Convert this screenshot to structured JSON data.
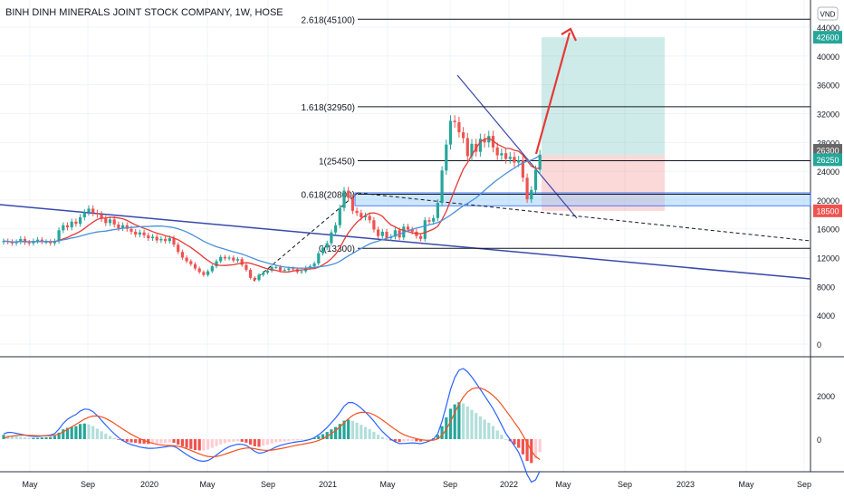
{
  "chart_data": {
    "type": "candlestick",
    "title": "BINH DINH MINERALS JOINT STOCK COMPANY, 1W, HOSE",
    "currency_label": "VND",
    "x_ticks": [
      "May",
      "Sep",
      "2020",
      "May",
      "Sep",
      "2021",
      "May",
      "Sep",
      "2022",
      "May",
      "Sep",
      "2023",
      "May",
      "Sep"
    ],
    "y_ticks": [
      0,
      4000,
      8000,
      12000,
      16000,
      20000,
      24000,
      28000,
      32000,
      36000,
      40000,
      44000
    ],
    "y_range": [
      0,
      46000
    ],
    "price_badges": [
      {
        "value": "42600",
        "color": "#26a69a"
      },
      {
        "value": "26300",
        "color": "#666666"
      },
      {
        "value": "26250",
        "color": "#26a69a"
      },
      {
        "value": "18500",
        "color": "#ef5350"
      }
    ],
    "fib_levels": [
      {
        "label": "2.618(45100)",
        "value": 45100
      },
      {
        "label": "1.618(32950)",
        "value": 32950
      },
      {
        "label": "1(25450)",
        "value": 25450
      },
      {
        "label": "0.618(20800)",
        "value": 20800
      },
      {
        "label": "0(13300)",
        "value": 13300
      }
    ],
    "position_box": {
      "entry": 26250,
      "target": 42600,
      "stop": 18500
    },
    "macd_ticks": [
      2000,
      0
    ],
    "macd_range": [
      -1400,
      3700
    ],
    "close_series": [
      14300,
      14200,
      14000,
      14200,
      14600,
      14100,
      14000,
      14300,
      14500,
      14200,
      14200,
      14000,
      14300,
      15800,
      16500,
      16200,
      17000,
      16700,
      17600,
      18300,
      18800,
      18200,
      18000,
      17400,
      16800,
      17300,
      16600,
      16100,
      16500,
      16000,
      15600,
      15200,
      15500,
      15100,
      14700,
      14900,
      14400,
      14600,
      14300,
      14700,
      13800,
      12800,
      12000,
      11500,
      11100,
      10500,
      10000,
      9600,
      10100,
      10800,
      11500,
      12100,
      11900,
      12000,
      11600,
      11800,
      11000,
      10300,
      9200,
      8900,
      9600,
      9900,
      10200,
      10700,
      10700,
      10200,
      10300,
      10500,
      10400,
      10000,
      10100,
      10600,
      10800,
      11200,
      12600,
      13400,
      14000,
      15500,
      16500,
      18900,
      21300,
      20300,
      18500,
      18200,
      17600,
      17800,
      17200,
      15900,
      15000,
      15600,
      14700,
      14900,
      15800,
      14800,
      16300,
      15900,
      15600,
      15000,
      14600,
      17200,
      17000,
      17500,
      19600,
      24100,
      27700,
      31000,
      30800,
      29400,
      28600,
      26100,
      27800,
      26700,
      28500,
      28000,
      28900,
      27300,
      26200,
      26500,
      25700,
      26000,
      25200,
      25500,
      23100,
      20100,
      21400,
      24200,
      26300
    ],
    "macd_hist": [
      200,
      180,
      150,
      120,
      100,
      80,
      60,
      60,
      60,
      80,
      90,
      100,
      150,
      300,
      450,
      520,
      560,
      600,
      700,
      720,
      680,
      600,
      480,
      360,
      250,
      150,
      60,
      -20,
      -80,
      -120,
      -150,
      -170,
      -200,
      -210,
      -220,
      -210,
      -200,
      -180,
      -170,
      -150,
      -170,
      -250,
      -330,
      -400,
      -450,
      -500,
      -520,
      -520,
      -480,
      -400,
      -320,
      -240,
      -180,
      -140,
      -120,
      -100,
      -120,
      -160,
      -250,
      -330,
      -350,
      -300,
      -250,
      -200,
      -150,
      -120,
      -100,
      -80,
      -60,
      -50,
      -40,
      -20,
      10,
      60,
      140,
      230,
      330,
      450,
      560,
      700,
      850,
      900,
      840,
      760,
      660,
      560,
      460,
      340,
      200,
      100,
      20,
      -60,
      -100,
      -130,
      -100,
      -90,
      -80,
      -100,
      -110,
      -60,
      -20,
      40,
      200,
      600,
      1000,
      1400,
      1600,
      1700,
      1650,
      1500,
      1350,
      1200,
      1050,
      900,
      750,
      600,
      400,
      200,
      0,
      -100,
      -250,
      -400,
      -700,
      -1000,
      -1100,
      -900,
      -600
    ]
  }
}
